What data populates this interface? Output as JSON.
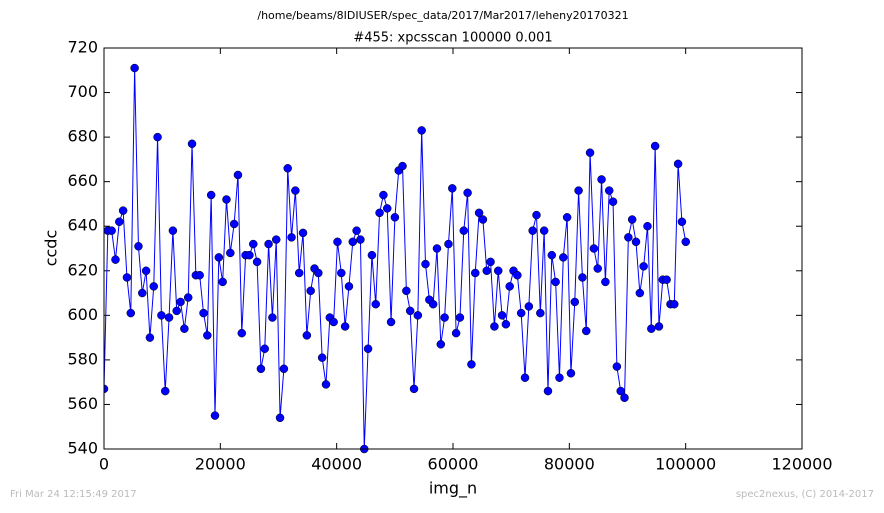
{
  "chart_data": {
    "type": "line",
    "suptitle": "/home/beams/8IDIUSER/spec_data/2017/Mar2017/leheny20170321",
    "title": "#455: xpcsscan 100000 0.001",
    "xlabel": "img_n",
    "ylabel": "ccdc",
    "footer_left": "Fri Mar 24 12:15:49 2017",
    "footer_right": "spec2nexus, (C) 2014-2017",
    "xlim": [
      0,
      120000
    ],
    "xticks": [
      0,
      20000,
      40000,
      60000,
      80000,
      100000,
      120000
    ],
    "ylim": [
      540,
      720
    ],
    "yticks": [
      540,
      560,
      580,
      600,
      620,
      640,
      660,
      680,
      700,
      720
    ],
    "grid": false,
    "x": [
      0,
      658,
      1316,
      1974,
      2632,
      3290,
      3948,
      4606,
      5264,
      5922,
      6580,
      7238,
      7896,
      8554,
      9212,
      9870,
      10528,
      11186,
      11844,
      12502,
      13160,
      13818,
      14476,
      15134,
      15792,
      16450,
      17108,
      17766,
      18424,
      19082,
      19740,
      20398,
      21056,
      21714,
      22372,
      23030,
      23688,
      24346,
      25004,
      25662,
      26320,
      26978,
      27636,
      28294,
      28952,
      29610,
      30268,
      30926,
      31584,
      32242,
      32900,
      33558,
      34216,
      34874,
      35532,
      36190,
      36848,
      37506,
      38164,
      38822,
      39480,
      40138,
      40796,
      41454,
      42112,
      42770,
      43428,
      44086,
      44744,
      45402,
      46060,
      46718,
      47376,
      48034,
      48692,
      49350,
      50008,
      50666,
      51324,
      51982,
      52640,
      53298,
      53956,
      54614,
      55272,
      55930,
      56588,
      57246,
      57904,
      58562,
      59220,
      59878,
      60536,
      61194,
      61852,
      62510,
      63168,
      63826,
      64484,
      65142,
      65800,
      66458,
      67116,
      67774,
      68432,
      69090,
      69748,
      70406,
      71064,
      71722,
      72380,
      73038,
      73696,
      74354,
      75012,
      75670,
      76328,
      76986,
      77644,
      78302,
      78960,
      79618,
      80276,
      80934,
      81592,
      82250,
      82908,
      83566,
      84224,
      84882,
      85540,
      86198,
      86856,
      87514,
      88172,
      88830,
      89488,
      90146,
      90804,
      91462,
      92120,
      92778,
      93436,
      94094,
      94752,
      95410,
      96068,
      96726,
      97384,
      98042,
      98700,
      99358,
      100016
    ],
    "series": [
      {
        "color": "#0000ff",
        "values": [
          567,
          638,
          638,
          625,
          642,
          647,
          617,
          601,
          711,
          631,
          610,
          620,
          590,
          613,
          680,
          600,
          566,
          599,
          638,
          602,
          606,
          594,
          608,
          677,
          618,
          618,
          601,
          591,
          654,
          555,
          626,
          615,
          652,
          628,
          641,
          663,
          592,
          627,
          627,
          632,
          624,
          576,
          585,
          632,
          599,
          634,
          554,
          576,
          666,
          635,
          656,
          619,
          637,
          591,
          611,
          621,
          619,
          581,
          569,
          599,
          597,
          633,
          619,
          595,
          613,
          633,
          638,
          634,
          540,
          585,
          627,
          605,
          646,
          654,
          648,
          597,
          644,
          665,
          667,
          611,
          602,
          567,
          600,
          683,
          623,
          607,
          605,
          630,
          587,
          599,
          632,
          657,
          592,
          599,
          638,
          655,
          578,
          619,
          646,
          643,
          620,
          624,
          595,
          620,
          600,
          596,
          613,
          620,
          618,
          601,
          572,
          604,
          638,
          645,
          601,
          638,
          566,
          627,
          615,
          572,
          626,
          644,
          574,
          606,
          656,
          617,
          593,
          673,
          630,
          621,
          661,
          615,
          656,
          651,
          577,
          566,
          563,
          635,
          643,
          633,
          610,
          622,
          640,
          594,
          676,
          595,
          616,
          616,
          605,
          605,
          668,
          642,
          633
        ]
      }
    ]
  }
}
